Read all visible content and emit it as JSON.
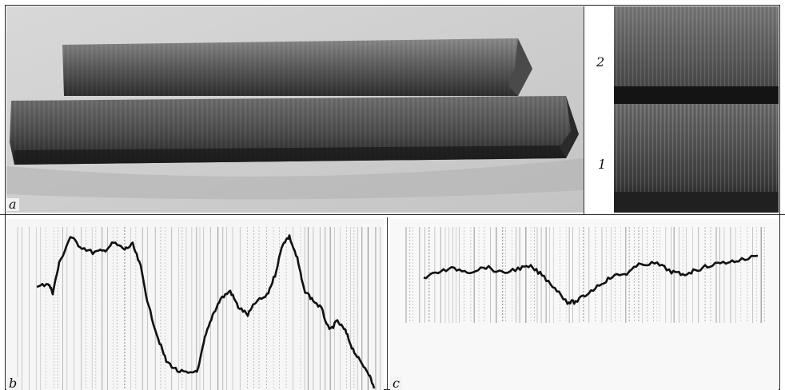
{
  "panels": {
    "a": {
      "label": "a"
    },
    "inset": {
      "label_top": "2",
      "label_bottom": "1"
    },
    "b": {
      "label": "b"
    },
    "c": {
      "label": "c"
    }
  },
  "colors": {
    "photo_background": "#cfcfcf",
    "bar_dark": "#3a3a3a",
    "trace": "#111111",
    "grid": "#7d7d7d",
    "paper": "#f4f4f4"
  }
}
